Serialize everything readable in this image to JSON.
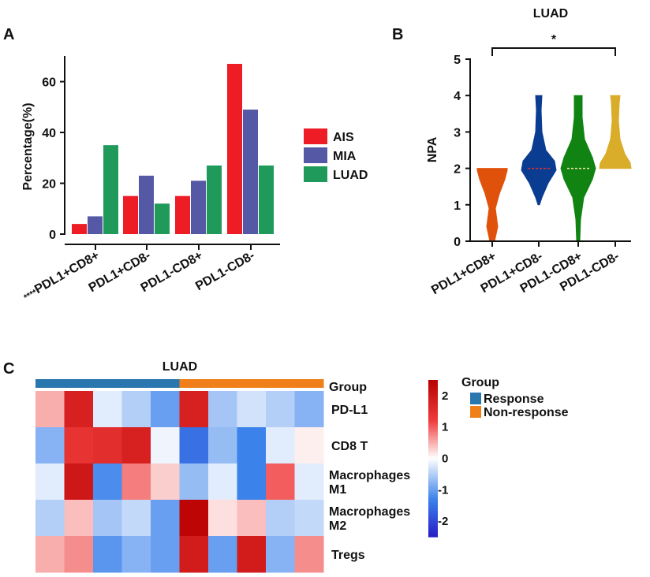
{
  "panels": {
    "a": "A",
    "b": "B",
    "c": "C"
  },
  "chart_data": [
    {
      "type": "bar",
      "panel": "A",
      "categories": [
        "PDL1+CD8+",
        "PDL1+CD8-",
        "PDL1-CD8+",
        "PDL1-CD8-"
      ],
      "category_prefix": "****",
      "series": [
        {
          "name": "AIS",
          "color": "#ee1c25",
          "values": [
            4,
            15,
            15,
            67
          ]
        },
        {
          "name": "MIA",
          "color": "#5558a4",
          "values": [
            7,
            23,
            21,
            49
          ]
        },
        {
          "name": "LUAD",
          "color": "#1f9a5a",
          "values": [
            35,
            12,
            27,
            27
          ]
        }
      ],
      "ylabel": "Percentage(%)",
      "ylim": [
        0,
        70
      ],
      "yticks": [
        0,
        20,
        40,
        60
      ],
      "legend": "right"
    },
    {
      "type": "violin",
      "panel": "B",
      "title": "LUAD",
      "categories": [
        "PDL1+CD8+",
        "PDL1+CD8-",
        "PDL1-CD8+",
        "PDL1-CD8-"
      ],
      "colors": [
        "#e0520c",
        "#0a3d91",
        "#118312",
        "#d9ac2a"
      ],
      "ranges": [
        [
          0,
          2
        ],
        [
          1,
          4
        ],
        [
          0,
          4
        ],
        [
          2,
          4
        ]
      ],
      "medians": [
        null,
        2,
        2,
        null
      ],
      "ylabel": "NPA",
      "ylim": [
        0,
        5
      ],
      "yticks": [
        0,
        1,
        2,
        3,
        4,
        5
      ],
      "significance": {
        "from": "PDL1+CD8+",
        "to": "PDL1-CD8-",
        "label": "*"
      }
    },
    {
      "type": "heatmap",
      "panel": "C",
      "title": "LUAD",
      "rows": [
        "PD-L1",
        "CD8 T",
        "Macrophages M1",
        "Macrophages M2",
        "Tregs"
      ],
      "row_labels": [
        [
          "PD-L1"
        ],
        [
          "CD8 T"
        ],
        [
          "Macrophages",
          "M1"
        ],
        [
          "Macrophages",
          "M2"
        ],
        [
          "Tregs"
        ]
      ],
      "annotation_row_label": "Group",
      "groups": [
        "Response",
        "Response",
        "Response",
        "Response",
        "Response",
        "Non-response",
        "Non-response",
        "Non-response",
        "Non-response",
        "Non-response"
      ],
      "values": [
        [
          0.5,
          1.8,
          -0.2,
          -0.5,
          -1.0,
          1.8,
          -0.6,
          -0.3,
          -0.5,
          -0.8
        ],
        [
          -0.8,
          1.4,
          1.5,
          1.8,
          -0.1,
          -1.5,
          -0.7,
          -1.3,
          -0.2,
          0.1
        ],
        [
          -0.2,
          2.0,
          -1.2,
          0.8,
          0.3,
          -0.7,
          -0.2,
          -1.3,
          1.0,
          -0.2
        ],
        [
          -0.5,
          0.4,
          -0.6,
          -0.4,
          -1.0,
          2.4,
          0.2,
          0.4,
          -0.5,
          -0.4
        ],
        [
          0.5,
          0.7,
          -1.1,
          -0.8,
          -1.0,
          1.9,
          -1.0,
          1.9,
          -0.8,
          0.7
        ]
      ],
      "color_range": [
        -2.5,
        2.5
      ],
      "colorbar_ticks": [
        2,
        1,
        0,
        -1,
        -2
      ],
      "legend_title": "Group",
      "legend": [
        {
          "label": "Response",
          "color": "#2a76ae"
        },
        {
          "label": "Non-response",
          "color": "#f07f1a"
        }
      ]
    }
  ]
}
